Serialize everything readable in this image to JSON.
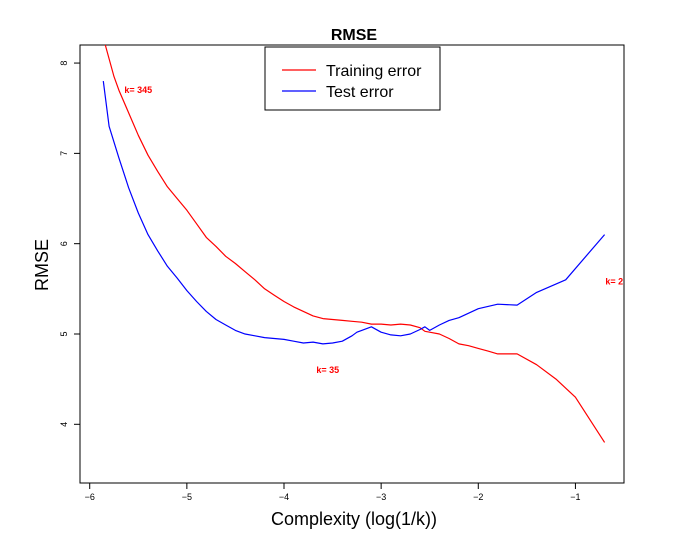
{
  "chart_data": {
    "type": "line",
    "title": "RMSE",
    "xlabel": "Complexity (log(1/k))",
    "ylabel": "RMSE",
    "xlim": [
      -6.1,
      -0.5
    ],
    "ylim": [
      3.35,
      8.2
    ],
    "xticks": [
      -6,
      -5,
      -4,
      -3,
      -2,
      -1
    ],
    "xtick_labels": [
      "−6",
      "−5",
      "−4",
      "−3",
      "−2",
      "−1"
    ],
    "yticks": [
      4,
      5,
      6,
      7,
      8
    ],
    "ytick_labels": [
      "4",
      "5",
      "6",
      "7",
      "8"
    ],
    "grid": false,
    "legend_position": "top-center",
    "series": [
      {
        "name": "Training error",
        "color": "#ff0000",
        "x": [
          -5.84,
          -5.75,
          -5.7,
          -5.6,
          -5.5,
          -5.4,
          -5.3,
          -5.2,
          -5.1,
          -5.0,
          -4.9,
          -4.8,
          -4.7,
          -4.6,
          -4.5,
          -4.4,
          -4.3,
          -4.2,
          -4.1,
          -4.0,
          -3.9,
          -3.8,
          -3.7,
          -3.6,
          -3.5,
          -3.4,
          -3.3,
          -3.2,
          -3.1,
          -3.0,
          -2.9,
          -2.8,
          -2.7,
          -2.6,
          -2.55,
          -2.5,
          -2.4,
          -2.3,
          -2.2,
          -2.1,
          -2.0,
          -1.9,
          -1.8,
          -1.7,
          -1.6,
          -1.4,
          -1.2,
          -1.0,
          -0.7
        ],
        "y": [
          8.2,
          7.85,
          7.7,
          7.45,
          7.2,
          6.98,
          6.8,
          6.63,
          6.5,
          6.37,
          6.22,
          6.07,
          5.97,
          5.86,
          5.78,
          5.69,
          5.6,
          5.5,
          5.43,
          5.36,
          5.3,
          5.25,
          5.2,
          5.17,
          5.16,
          5.15,
          5.14,
          5.13,
          5.11,
          5.11,
          5.1,
          5.11,
          5.1,
          5.07,
          5.03,
          5.02,
          5.0,
          4.95,
          4.89,
          4.87,
          4.84,
          4.81,
          4.78,
          4.78,
          4.78,
          4.66,
          4.5,
          4.3,
          3.8
        ]
      },
      {
        "name": "Test error",
        "color": "#0000ff",
        "x": [
          -5.86,
          -5.8,
          -5.7,
          -5.6,
          -5.5,
          -5.4,
          -5.3,
          -5.2,
          -5.1,
          -5.0,
          -4.9,
          -4.8,
          -4.7,
          -4.6,
          -4.5,
          -4.4,
          -4.3,
          -4.2,
          -4.1,
          -4.0,
          -3.9,
          -3.8,
          -3.7,
          -3.6,
          -3.5,
          -3.4,
          -3.3,
          -3.25,
          -3.2,
          -3.1,
          -3.0,
          -2.9,
          -2.8,
          -2.7,
          -2.6,
          -2.55,
          -2.5,
          -2.4,
          -2.3,
          -2.2,
          -2.0,
          -1.8,
          -1.6,
          -1.4,
          -1.1,
          -0.7
        ],
        "y": [
          7.8,
          7.3,
          6.95,
          6.62,
          6.34,
          6.1,
          5.92,
          5.75,
          5.62,
          5.48,
          5.36,
          5.25,
          5.16,
          5.1,
          5.04,
          5.0,
          4.98,
          4.96,
          4.95,
          4.94,
          4.92,
          4.9,
          4.91,
          4.89,
          4.9,
          4.92,
          4.98,
          5.02,
          5.04,
          5.08,
          5.02,
          4.99,
          4.98,
          5.0,
          5.05,
          5.08,
          5.04,
          5.1,
          5.15,
          5.18,
          5.28,
          5.33,
          5.32,
          5.46,
          5.6,
          6.1
        ]
      }
    ],
    "annotations": [
      {
        "text": "k= 345",
        "x": -5.5,
        "y": 7.7,
        "color": "#ff0000"
      },
      {
        "text": "k= 35",
        "x": -3.55,
        "y": 4.6,
        "color": "#ff0000"
      },
      {
        "text": "k= 2",
        "x": -0.6,
        "y": 5.58,
        "color": "#ff0000"
      }
    ]
  }
}
